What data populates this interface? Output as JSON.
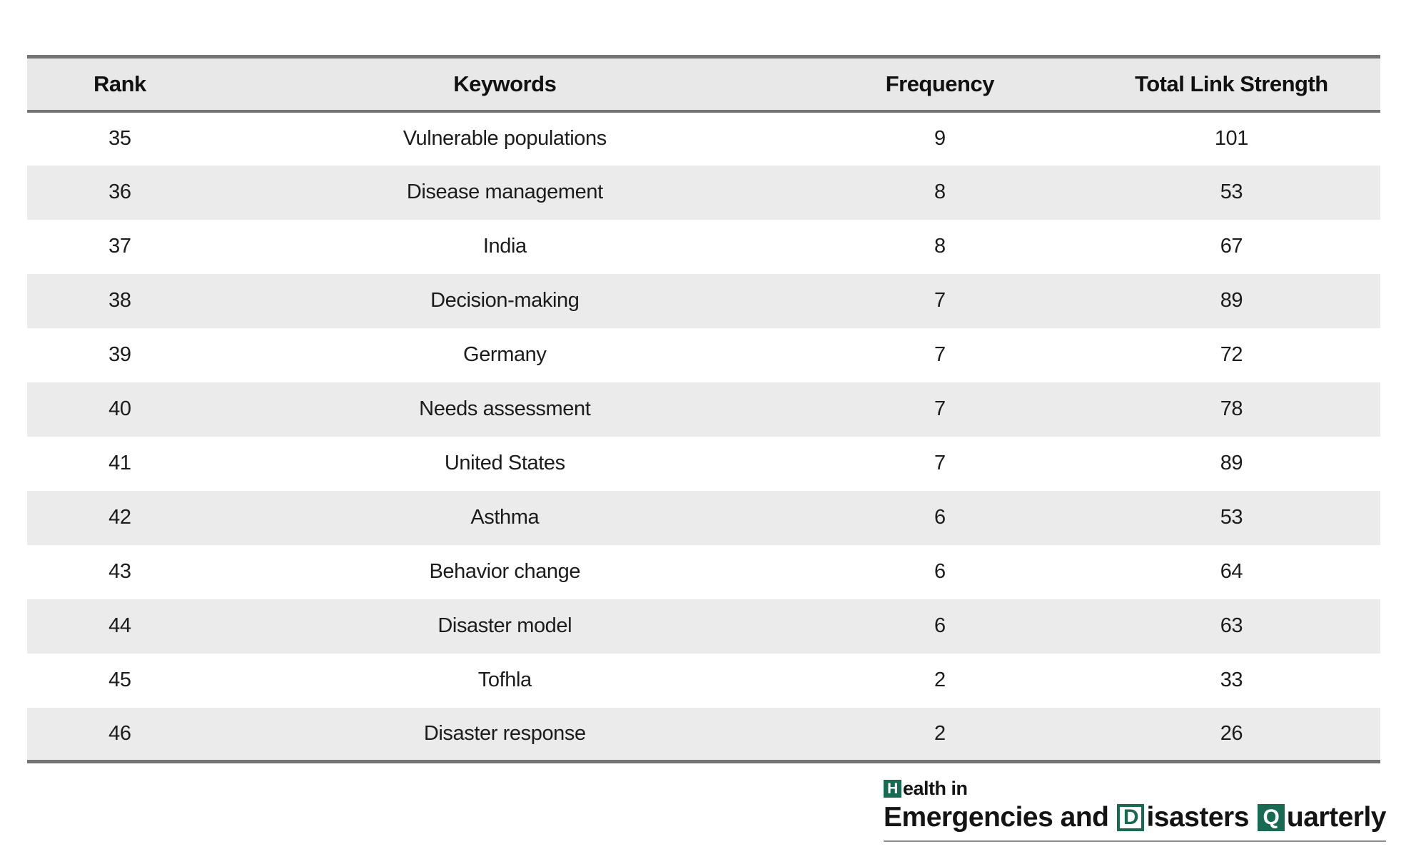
{
  "table": {
    "columns": [
      "Rank",
      "Keywords",
      "Frequency",
      "Total Link Strength"
    ],
    "rows": [
      {
        "rank": "35",
        "keyword": "Vulnerable populations",
        "frequency": "9",
        "total_link_strength": "101"
      },
      {
        "rank": "36",
        "keyword": "Disease management",
        "frequency": "8",
        "total_link_strength": "53"
      },
      {
        "rank": "37",
        "keyword": "India",
        "frequency": "8",
        "total_link_strength": "67"
      },
      {
        "rank": "38",
        "keyword": "Decision-making",
        "frequency": "7",
        "total_link_strength": "89"
      },
      {
        "rank": "39",
        "keyword": "Germany",
        "frequency": "7",
        "total_link_strength": "72"
      },
      {
        "rank": "40",
        "keyword": "Needs assessment",
        "frequency": "7",
        "total_link_strength": "78"
      },
      {
        "rank": "41",
        "keyword": "United States",
        "frequency": "7",
        "total_link_strength": "89"
      },
      {
        "rank": "42",
        "keyword": "Asthma",
        "frequency": "6",
        "total_link_strength": "53"
      },
      {
        "rank": "43",
        "keyword": "Behavior change",
        "frequency": "6",
        "total_link_strength": "64"
      },
      {
        "rank": "44",
        "keyword": "Disaster model",
        "frequency": "6",
        "total_link_strength": "63"
      },
      {
        "rank": "45",
        "keyword": "Tofhla",
        "frequency": "2",
        "total_link_strength": "33"
      },
      {
        "rank": "46",
        "keyword": "Disaster response",
        "frequency": "2",
        "total_link_strength": "26"
      }
    ]
  },
  "logo": {
    "h_initial": "H",
    "line1_rest": "ealth in",
    "line2_seg1": "Emergencies and",
    "d_initial": "D",
    "line2_seg2": "isasters",
    "q_initial": "Q",
    "line2_seg3": "uarterly"
  },
  "colors": {
    "brand_green": "#186a52",
    "header_bg": "#e8e8e8",
    "row_alt_bg": "#ebebeb",
    "border_gray": "#747474",
    "text": "#1c1c1c"
  }
}
